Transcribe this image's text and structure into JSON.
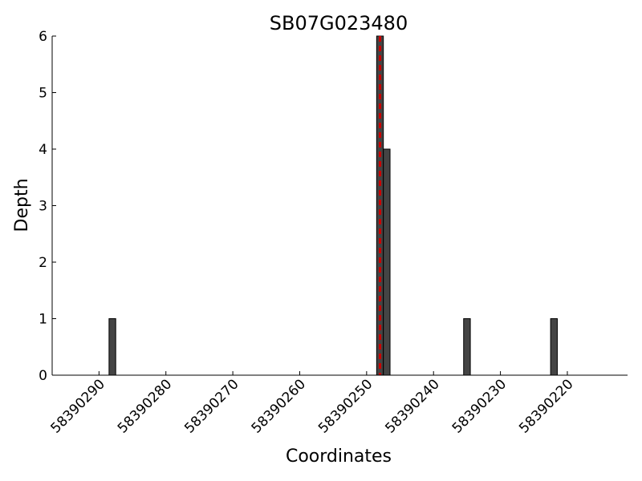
{
  "chart_data": {
    "type": "bar",
    "title": "SB07G023480",
    "xlabel": "Coordinates",
    "ylabel": "Depth",
    "xlim": [
      58390297,
      58390211
    ],
    "ylim": [
      0,
      6
    ],
    "x_reversed": true,
    "yticks": [
      0,
      1,
      2,
      3,
      4,
      5,
      6
    ],
    "xticks": [
      58390290,
      58390280,
      58390270,
      58390260,
      58390250,
      58390240,
      58390230,
      58390220
    ],
    "xtick_labels": [
      "58390290",
      "58390280",
      "58390270",
      "58390260",
      "58390250",
      "58390240",
      "58390230",
      "58390220"
    ],
    "ytick_labels": [
      "0",
      "1",
      "2",
      "3",
      "4",
      "5",
      "6"
    ],
    "bars": [
      {
        "x": 58390288,
        "depth": 1
      },
      {
        "x": 58390248,
        "depth": 6
      },
      {
        "x": 58390247,
        "depth": 4
      },
      {
        "x": 58390235,
        "depth": 1
      },
      {
        "x": 58390222,
        "depth": 1
      }
    ],
    "marker_line": {
      "x": 58390248,
      "color": "#cc0000",
      "style": "dashed"
    },
    "bar_color": "#444444",
    "grid": false
  }
}
